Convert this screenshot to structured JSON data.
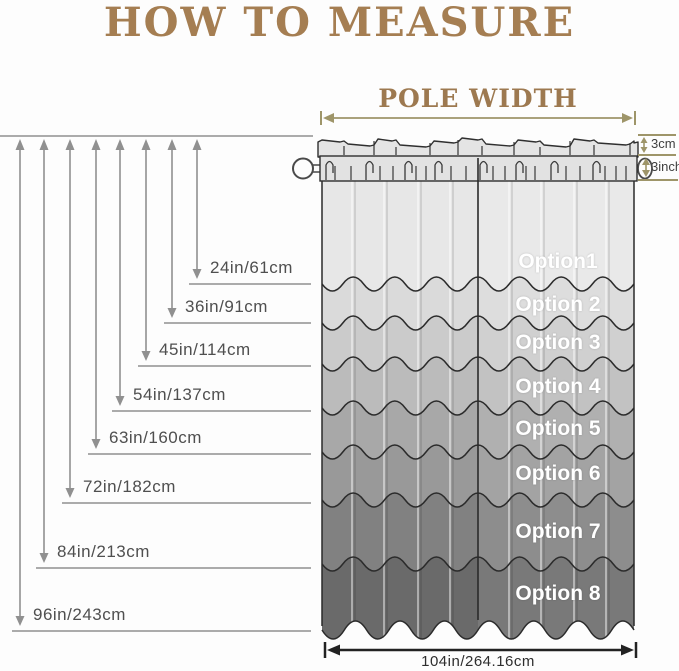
{
  "title": {
    "text": "HOW TO MEASURE"
  },
  "pole_width": {
    "label": "POLE WIDTH"
  },
  "length_scale": {
    "items": [
      {
        "label": "24in/61cm"
      },
      {
        "label": "36in/91cm"
      },
      {
        "label": "45in/114cm"
      },
      {
        "label": "54in/137cm"
      },
      {
        "label": "63in/160cm"
      },
      {
        "label": "72in/182cm"
      },
      {
        "label": "84in/213cm"
      },
      {
        "label": "96in/243cm"
      }
    ]
  },
  "header_measurements": {
    "ruffle_height": "3cm",
    "rod_pocket_depth": "3inch"
  },
  "curtain": {
    "options": [
      {
        "label": "Option1",
        "shade": "#e7e7e7"
      },
      {
        "label": "Option 2",
        "shade": "#dadada"
      },
      {
        "label": "Option 3",
        "shade": "#cbcbcb"
      },
      {
        "label": "Option 4",
        "shade": "#bbbbbb"
      },
      {
        "label": "Option 5",
        "shade": "#a8a8a8"
      },
      {
        "label": "Option 6",
        "shade": "#999999"
      },
      {
        "label": "Option 7",
        "shade": "#818181"
      },
      {
        "label": "Option 8",
        "shade": "#6a6a6a"
      }
    ],
    "bottom_width_label": "104in/264.16cm"
  },
  "colors": {
    "brand_brown": "#a57e52",
    "tan_annotation": "#9e9569",
    "measure_gray": "#909090",
    "outline_dark": "#2e2e2e",
    "label_text": "#4f4f4f",
    "option_text": "#ffffff"
  }
}
